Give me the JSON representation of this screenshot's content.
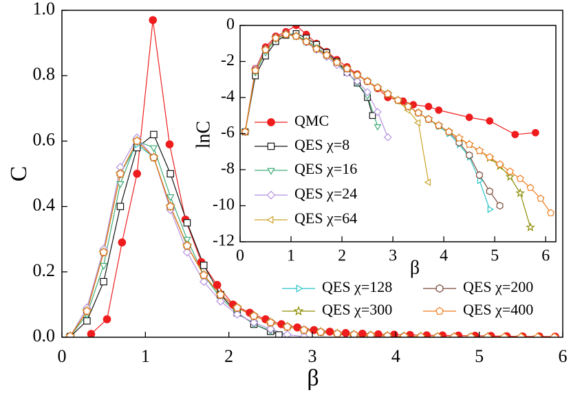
{
  "chart_data": [
    {
      "type": "line",
      "xlabel": "β",
      "ylabel": "C",
      "xlim": [
        0,
        6
      ],
      "ylim": [
        0,
        1
      ],
      "xticks": [
        0,
        1,
        2,
        3,
        4,
        5,
        6
      ],
      "yticks": [
        {
          "value": 0,
          "label": "0.0"
        },
        0.2,
        0.4,
        0.6,
        0.8,
        {
          "value": 1,
          "label": "1.0"
        }
      ],
      "series": [
        {
          "name": "QMC",
          "color": "#ee1c1c",
          "marker": "o",
          "x": [
            0.35,
            0.54,
            0.72,
            0.9,
            1.09,
            1.29,
            1.48,
            1.67,
            1.86,
            2.05,
            2.25,
            2.44,
            2.63,
            2.82,
            3.02,
            3.21,
            3.4,
            3.6,
            3.79,
            3.98,
            4.17,
            4.37,
            4.56,
            4.75,
            4.95,
            5.14,
            5.33,
            5.52,
            5.72,
            5.91
          ],
          "values": [
            0.01,
            0.055,
            0.29,
            0.5,
            0.97,
            0.59,
            0.36,
            0.23,
            0.16,
            0.1,
            0.075,
            0.055,
            0.04,
            0.03,
            0.022,
            0.017,
            0.013,
            0.011,
            0.009,
            0.008,
            0.007,
            0.006,
            0.0055,
            0.005,
            0.0045,
            0.004,
            0.003,
            0.0025,
            0.0025,
            0.002
          ]
        },
        {
          "name": "QES χ=8",
          "color": "#111111",
          "marker": "s",
          "x": [
            0.1,
            0.3,
            0.5,
            0.7,
            0.9,
            1.1,
            1.3,
            1.5,
            1.7,
            1.9,
            2.1,
            2.3,
            2.5,
            2.6
          ],
          "values": [
            0.002,
            0.05,
            0.17,
            0.4,
            0.58,
            0.62,
            0.5,
            0.35,
            0.22,
            0.13,
            0.075,
            0.04,
            0.018,
            0.007
          ]
        },
        {
          "name": "QES χ=16",
          "color": "#3daa77",
          "marker": "v",
          "x": [
            0.1,
            0.3,
            0.5,
            0.7,
            0.9,
            1.1,
            1.3,
            1.5,
            1.7,
            1.9,
            2.1,
            2.3,
            2.5,
            2.7
          ],
          "values": [
            0.003,
            0.07,
            0.22,
            0.47,
            0.6,
            0.58,
            0.43,
            0.3,
            0.19,
            0.12,
            0.075,
            0.04,
            0.02,
            0.004
          ]
        },
        {
          "name": "QES χ=24",
          "color": "#b58fe0",
          "marker": "D",
          "x": [
            0.1,
            0.3,
            0.5,
            0.7,
            0.9,
            1.1,
            1.3,
            1.5,
            1.7,
            1.9,
            2.1,
            2.3,
            2.5,
            2.7,
            2.9
          ],
          "values": [
            0.003,
            0.09,
            0.27,
            0.52,
            0.61,
            0.55,
            0.39,
            0.26,
            0.17,
            0.11,
            0.07,
            0.045,
            0.025,
            0.008,
            0.002
          ]
        },
        {
          "name": "QES χ=64",
          "color": "#c9a227",
          "marker": "<",
          "x": [
            0.1,
            0.3,
            0.5,
            0.7,
            0.9,
            1.1,
            1.3,
            1.5,
            1.7,
            1.9,
            2.1,
            2.3,
            2.5,
            2.7,
            2.9,
            3.1,
            3.3,
            3.5,
            3.7
          ],
          "values": [
            0.003,
            0.08,
            0.26,
            0.5,
            0.6,
            0.55,
            0.4,
            0.28,
            0.19,
            0.13,
            0.09,
            0.065,
            0.045,
            0.032,
            0.022,
            0.015,
            0.009,
            0.0045,
            0.0002
          ]
        },
        {
          "name": "QES χ=128",
          "color": "#27c4c7",
          "marker": ">",
          "x": [
            0.1,
            0.3,
            0.5,
            0.7,
            0.9,
            1.1,
            1.3,
            1.5,
            1.7,
            1.9,
            2.1,
            2.3,
            2.5,
            2.7,
            2.9,
            3.1,
            3.3,
            3.5,
            3.7,
            3.9,
            4.1,
            4.3,
            4.5,
            4.7,
            4.9
          ],
          "values": [
            0.003,
            0.08,
            0.26,
            0.5,
            0.59,
            0.55,
            0.4,
            0.28,
            0.19,
            0.13,
            0.09,
            0.065,
            0.045,
            0.032,
            0.022,
            0.016,
            0.011,
            0.008,
            0.0055,
            0.0037,
            0.0025,
            0.0014,
            0.0007,
            0.0002,
            4e-05
          ]
        },
        {
          "name": "QES χ=200",
          "color": "#7a4a3a",
          "marker": "h",
          "x": [
            0.1,
            0.3,
            0.5,
            0.7,
            0.9,
            1.1,
            1.3,
            1.5,
            1.7,
            1.9,
            2.1,
            2.3,
            2.5,
            2.7,
            2.9,
            3.1,
            3.3,
            3.5,
            3.7,
            3.9,
            4.1,
            4.3,
            4.5,
            4.7,
            4.9,
            5.1
          ],
          "values": [
            0.003,
            0.08,
            0.26,
            0.5,
            0.6,
            0.55,
            0.4,
            0.28,
            0.19,
            0.13,
            0.09,
            0.065,
            0.045,
            0.032,
            0.022,
            0.016,
            0.011,
            0.008,
            0.0055,
            0.0039,
            0.0027,
            0.0015,
            0.0007,
            0.0002,
            0.0001,
            5e-05
          ]
        },
        {
          "name": "QES χ=300",
          "color": "#8c8c00",
          "marker": "*",
          "x": [
            0.1,
            0.3,
            0.5,
            0.7,
            0.9,
            1.1,
            1.3,
            1.5,
            1.7,
            1.9,
            2.1,
            2.3,
            2.5,
            2.7,
            2.9,
            3.1,
            3.3,
            3.5,
            3.7,
            3.9,
            4.1,
            4.3,
            4.5,
            4.7,
            4.9,
            5.1,
            5.3,
            5.5,
            5.7
          ],
          "values": [
            0.003,
            0.08,
            0.26,
            0.5,
            0.6,
            0.55,
            0.4,
            0.28,
            0.19,
            0.13,
            0.09,
            0.065,
            0.045,
            0.032,
            0.022,
            0.016,
            0.011,
            0.008,
            0.0055,
            0.0039,
            0.0027,
            0.0019,
            0.0014,
            0.001,
            0.0006,
            0.0004,
            0.0002,
            0.0001,
            1e-05
          ]
        },
        {
          "name": "QES χ=400",
          "color": "#f07a1a",
          "marker": "p",
          "x": [
            0.1,
            0.3,
            0.5,
            0.7,
            0.9,
            1.1,
            1.3,
            1.5,
            1.7,
            1.9,
            2.1,
            2.3,
            2.5,
            2.7,
            2.9,
            3.1,
            3.3,
            3.5,
            3.7,
            3.9,
            4.1,
            4.3,
            4.5,
            4.7,
            4.9,
            5.1,
            5.3,
            5.5,
            5.7,
            5.9
          ],
          "values": [
            0.003,
            0.08,
            0.26,
            0.5,
            0.6,
            0.55,
            0.4,
            0.28,
            0.19,
            0.13,
            0.09,
            0.065,
            0.045,
            0.032,
            0.022,
            0.016,
            0.011,
            0.008,
            0.0055,
            0.0039,
            0.0027,
            0.0019,
            0.0014,
            0.001,
            0.0007,
            0.0005,
            0.0003,
            0.0002,
            0.0001,
            0.0001
          ]
        }
      ]
    },
    {
      "type": "line",
      "xlabel": "β",
      "ylabel": "lnC",
      "xlim": [
        0,
        6.2
      ],
      "ylim": [
        -12,
        0
      ],
      "xticks": [
        0,
        1,
        2,
        3,
        4,
        5,
        6
      ],
      "yticks": [
        -12,
        -10,
        -8,
        -6,
        -4,
        -2,
        0
      ],
      "series": [
        {
          "color": "#ee1c1c",
          "marker": "o",
          "x": [
            0.1,
            0.3,
            0.5,
            0.7,
            0.9,
            1.1,
            1.3,
            1.5,
            1.7,
            1.9,
            2.1,
            2.3,
            2.5,
            2.7,
            2.9,
            3.2,
            3.4,
            3.7,
            3.9,
            4.5,
            4.9,
            5.4,
            5.8
          ],
          "values": [
            -5.9,
            -2.4,
            -1.2,
            -0.6,
            -0.35,
            0,
            -0.5,
            -1.0,
            -1.45,
            -1.9,
            -2.3,
            -2.7,
            -3.1,
            -3.5,
            -4.0,
            -4.2,
            -4.4,
            -4.5,
            -4.7,
            -5.1,
            -5.3,
            -6.05,
            -5.95
          ]
        },
        {
          "color": "#111111",
          "marker": "s",
          "x": [
            0.1,
            0.3,
            0.5,
            0.7,
            0.9,
            1.1,
            1.3,
            1.5,
            1.7,
            1.9,
            2.1,
            2.3,
            2.5,
            2.6
          ],
          "values": [
            -5.9,
            -2.8,
            -1.7,
            -0.9,
            -0.55,
            -0.45,
            -0.7,
            -1.05,
            -1.5,
            -2.0,
            -2.6,
            -3.2,
            -4.0,
            -5.0
          ]
        },
        {
          "color": "#3daa77",
          "marker": "v",
          "x": [
            0.1,
            0.3,
            0.5,
            0.7,
            0.9,
            1.1,
            1.3,
            1.5,
            1.7,
            1.9,
            2.1,
            2.3,
            2.5,
            2.7
          ],
          "values": [
            -5.9,
            -2.6,
            -1.5,
            -0.75,
            -0.5,
            -0.55,
            -0.85,
            -1.2,
            -1.65,
            -2.1,
            -2.6,
            -3.2,
            -3.9,
            -5.6
          ]
        },
        {
          "color": "#b58fe0",
          "marker": "D",
          "x": [
            0.1,
            0.3,
            0.5,
            0.7,
            0.9,
            1.1,
            1.3,
            1.5,
            1.7,
            1.9,
            2.1,
            2.3,
            2.5,
            2.7,
            2.9
          ],
          "values": [
            -5.9,
            -2.4,
            -1.3,
            -0.65,
            -0.45,
            -0.6,
            -0.95,
            -1.35,
            -1.75,
            -2.2,
            -2.65,
            -3.1,
            -3.7,
            -4.8,
            -6.2
          ]
        },
        {
          "color": "#c9a227",
          "marker": "<",
          "x": [
            0.1,
            0.3,
            0.5,
            0.7,
            0.9,
            1.1,
            1.3,
            1.5,
            1.7,
            1.9,
            2.1,
            2.3,
            2.5,
            2.7,
            2.9,
            3.1,
            3.3,
            3.5,
            3.7
          ],
          "values": [
            -5.9,
            -2.5,
            -1.35,
            -0.7,
            -0.5,
            -0.6,
            -0.9,
            -1.3,
            -1.65,
            -2.05,
            -2.4,
            -2.75,
            -3.1,
            -3.45,
            -3.8,
            -4.2,
            -4.7,
            -5.4,
            -8.7
          ]
        },
        {
          "color": "#27c4c7",
          "marker": ">",
          "x": [
            0.1,
            0.3,
            0.5,
            0.7,
            0.9,
            1.1,
            1.3,
            1.5,
            1.7,
            1.9,
            2.1,
            2.3,
            2.5,
            2.7,
            2.9,
            3.1,
            3.3,
            3.5,
            3.7,
            3.9,
            4.1,
            4.3,
            4.5,
            4.7,
            4.9
          ],
          "values": [
            -5.9,
            -2.5,
            -1.35,
            -0.7,
            -0.5,
            -0.6,
            -0.9,
            -1.3,
            -1.65,
            -2.05,
            -2.4,
            -2.75,
            -3.1,
            -3.45,
            -3.8,
            -4.15,
            -4.5,
            -4.85,
            -5.2,
            -5.6,
            -6.0,
            -6.6,
            -7.3,
            -8.6,
            -10.2
          ]
        },
        {
          "color": "#7a4a3a",
          "marker": "h",
          "x": [
            0.1,
            0.3,
            0.5,
            0.7,
            0.9,
            1.1,
            1.3,
            1.5,
            1.7,
            1.9,
            2.1,
            2.3,
            2.5,
            2.7,
            2.9,
            3.1,
            3.3,
            3.5,
            3.7,
            3.9,
            4.1,
            4.3,
            4.5,
            4.7,
            4.9,
            5.1
          ],
          "values": [
            -5.9,
            -2.5,
            -1.35,
            -0.7,
            -0.5,
            -0.6,
            -0.9,
            -1.3,
            -1.65,
            -2.05,
            -2.4,
            -2.75,
            -3.1,
            -3.45,
            -3.8,
            -4.15,
            -4.5,
            -4.85,
            -5.2,
            -5.55,
            -5.9,
            -6.5,
            -7.2,
            -8.3,
            -9.2,
            -10.0
          ]
        },
        {
          "color": "#8c8c00",
          "marker": "*",
          "x": [
            0.1,
            0.3,
            0.5,
            0.7,
            0.9,
            1.1,
            1.3,
            1.5,
            1.7,
            1.9,
            2.1,
            2.3,
            2.5,
            2.7,
            2.9,
            3.1,
            3.3,
            3.5,
            3.7,
            3.9,
            4.1,
            4.3,
            4.5,
            4.7,
            4.9,
            5.1,
            5.3,
            5.5,
            5.7
          ],
          "values": [
            -5.9,
            -2.5,
            -1.35,
            -0.7,
            -0.5,
            -0.6,
            -0.9,
            -1.3,
            -1.65,
            -2.05,
            -2.4,
            -2.75,
            -3.1,
            -3.45,
            -3.8,
            -4.15,
            -4.5,
            -4.85,
            -5.2,
            -5.55,
            -5.9,
            -6.25,
            -6.6,
            -6.95,
            -7.35,
            -7.8,
            -8.4,
            -9.3,
            -11.2
          ]
        },
        {
          "color": "#f07a1a",
          "marker": "p",
          "x": [
            0.1,
            0.3,
            0.5,
            0.7,
            0.9,
            1.1,
            1.3,
            1.5,
            1.7,
            1.9,
            2.1,
            2.3,
            2.5,
            2.7,
            2.9,
            3.1,
            3.3,
            3.5,
            3.7,
            3.9,
            4.1,
            4.3,
            4.5,
            4.7,
            4.9,
            5.1,
            5.3,
            5.5,
            5.7,
            5.9,
            6.1
          ],
          "values": [
            -5.9,
            -2.5,
            -1.35,
            -0.7,
            -0.5,
            -0.6,
            -0.9,
            -1.3,
            -1.65,
            -2.05,
            -2.4,
            -2.75,
            -3.1,
            -3.45,
            -3.8,
            -4.15,
            -4.5,
            -4.85,
            -5.2,
            -5.55,
            -5.9,
            -6.25,
            -6.6,
            -6.95,
            -7.3,
            -7.7,
            -8.1,
            -8.5,
            -9.0,
            -9.6,
            -10.4
          ]
        }
      ]
    }
  ]
}
